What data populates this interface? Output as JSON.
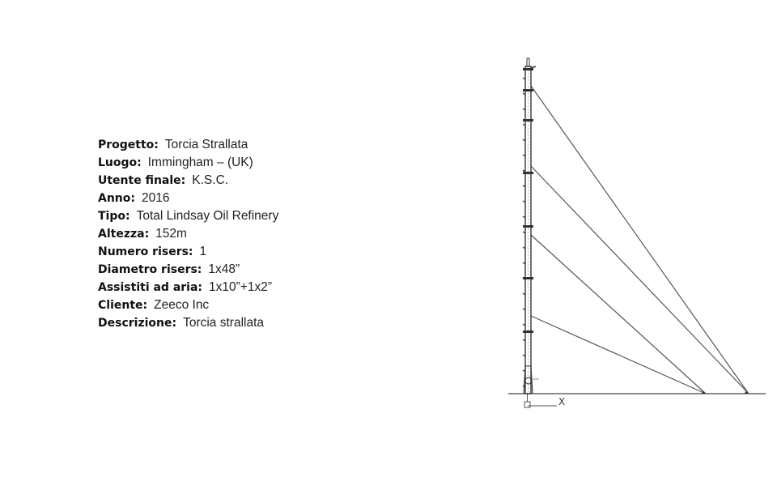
{
  "specs": [
    {
      "id": "progetto",
      "label": "Progetto:",
      "value": "Torcia Strallata"
    },
    {
      "id": "luogo",
      "label": "Luogo:",
      "value": "Immingham – (UK)"
    },
    {
      "id": "utente-finale",
      "label": "Utente finale:",
      "value": "K.S.C."
    },
    {
      "id": "anno",
      "label": "Anno:",
      "value": "2016"
    },
    {
      "id": "tipo",
      "label": "Tipo:",
      "value": "Total Lindsay Oil Refinery"
    },
    {
      "id": "altezza",
      "label": "Altezza:",
      "value": "152m"
    },
    {
      "id": "numero-risers",
      "label": "Numero risers:",
      "value": "1"
    },
    {
      "id": "diametro-risers",
      "label": "Diametro risers:",
      "value": "1x48”"
    },
    {
      "id": "assistiti-ad-aria",
      "label": "Assistiti ad aria:",
      "value": "1x10”+1x2”"
    },
    {
      "id": "cliente",
      "label": "Cliente:",
      "value": "Zeeco Inc"
    },
    {
      "id": "descrizione",
      "label": "Descrizione:",
      "value": "Torcia strallata"
    }
  ],
  "drawing": {
    "axis_label": "X",
    "colors": {
      "line": "#555555",
      "mast": "#333333"
    }
  }
}
